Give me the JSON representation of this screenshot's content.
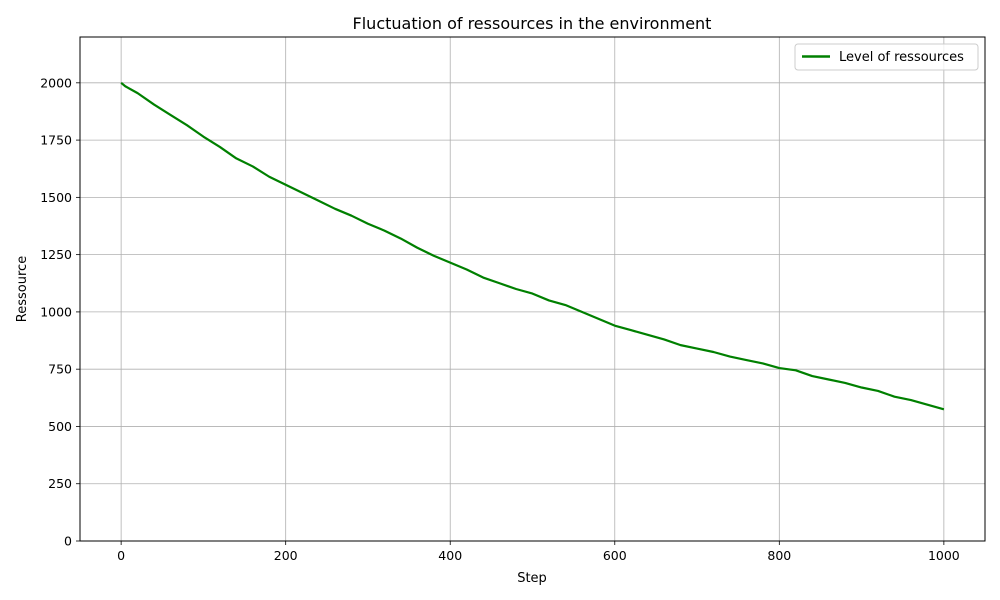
{
  "chart_data": {
    "type": "line",
    "title": "Fluctuation of ressources in the environment",
    "xlabel": "Step",
    "ylabel": "Ressource",
    "xlim": [
      -50,
      1050
    ],
    "ylim": [
      0,
      2200
    ],
    "xticks": [
      0,
      200,
      400,
      600,
      800,
      1000
    ],
    "yticks": [
      0,
      250,
      500,
      750,
      1000,
      1250,
      1500,
      1750,
      2000
    ],
    "grid": true,
    "legend_position": "top-right",
    "series": [
      {
        "name": "Level of ressources",
        "color": "#008000",
        "x": [
          0,
          5,
          20,
          40,
          60,
          80,
          100,
          120,
          140,
          160,
          180,
          200,
          220,
          240,
          260,
          280,
          300,
          320,
          340,
          360,
          380,
          400,
          420,
          440,
          460,
          480,
          500,
          520,
          540,
          560,
          580,
          600,
          620,
          640,
          660,
          680,
          700,
          720,
          740,
          760,
          780,
          800,
          820,
          840,
          860,
          880,
          900,
          920,
          940,
          960,
          980,
          1000
        ],
        "y": [
          2000,
          1985,
          1955,
          1905,
          1860,
          1815,
          1765,
          1720,
          1670,
          1635,
          1590,
          1555,
          1520,
          1485,
          1450,
          1420,
          1385,
          1355,
          1320,
          1280,
          1245,
          1215,
          1185,
          1150,
          1125,
          1100,
          1080,
          1050,
          1030,
          1000,
          970,
          940,
          920,
          900,
          880,
          855,
          840,
          825,
          805,
          790,
          775,
          755,
          745,
          720,
          705,
          690,
          670,
          655,
          630,
          615,
          595,
          575
        ]
      }
    ]
  }
}
